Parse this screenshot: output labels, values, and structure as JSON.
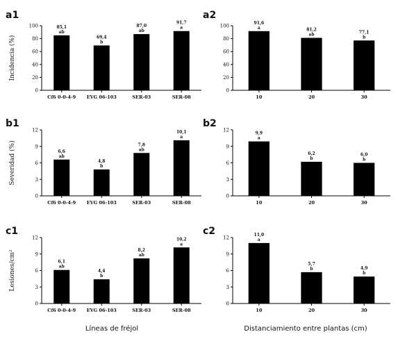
{
  "group_labels": {
    "left": "Líneas de fréjol",
    "right": "Distanciamiento entre plantas (cm)"
  },
  "bar_color": "#000000",
  "chart_data": [
    {
      "id": "a1",
      "panel_label": "a1",
      "type": "bar",
      "ylabel": "Incidencia (%)",
      "ylim": [
        0,
        100
      ],
      "yticks": [
        0,
        20,
        40,
        60,
        80,
        100
      ],
      "categories": [
        "Cf6 0-0-4-9",
        "EVG 06-103",
        "SER-03",
        "SER-08"
      ],
      "values": [
        85.1,
        69.4,
        87.0,
        91.7
      ],
      "value_labels": [
        "85,1",
        "69,4",
        "87,0",
        "91,7"
      ],
      "letters": [
        "ab",
        "b",
        "ab",
        "a"
      ]
    },
    {
      "id": "a2",
      "panel_label": "a2",
      "type": "bar",
      "ylabel": "",
      "ylim": [
        0,
        100
      ],
      "yticks": [
        0,
        20,
        40,
        60,
        80,
        100
      ],
      "categories": [
        "10",
        "20",
        "30"
      ],
      "values": [
        91.6,
        81.2,
        77.1
      ],
      "value_labels": [
        "91,6",
        "81,2",
        "77,1"
      ],
      "letters": [
        "a",
        "ab",
        "b"
      ]
    },
    {
      "id": "b1",
      "panel_label": "b1",
      "type": "bar",
      "ylabel": "Severidad (%)",
      "ylim": [
        0,
        12
      ],
      "yticks": [
        0,
        3,
        6,
        9,
        12
      ],
      "categories": [
        "Cf6 0-0-4-9",
        "EVG 06-103",
        "SER-03",
        "SER-08"
      ],
      "values": [
        6.6,
        4.8,
        7.8,
        10.1
      ],
      "value_labels": [
        "6,6",
        "4,8",
        "7,8",
        "10,1"
      ],
      "letters": [
        "ab",
        "b",
        "ab",
        "a"
      ]
    },
    {
      "id": "b2",
      "panel_label": "b2",
      "type": "bar",
      "ylabel": "",
      "ylim": [
        0,
        12
      ],
      "yticks": [
        0,
        3,
        6,
        9,
        12
      ],
      "categories": [
        "10",
        "20",
        "30"
      ],
      "values": [
        9.9,
        6.2,
        6.0
      ],
      "value_labels": [
        "9,9",
        "6,2",
        "6,0"
      ],
      "letters": [
        "a",
        "b",
        "b"
      ]
    },
    {
      "id": "c1",
      "panel_label": "c1",
      "type": "bar",
      "ylabel": "Lesiones/cm²",
      "ylim": [
        0,
        12
      ],
      "yticks": [
        0,
        3,
        6,
        9,
        12
      ],
      "categories": [
        "Cf6 0-0-4-9",
        "EVG 06-103",
        "SER-03",
        "SER-08"
      ],
      "values": [
        6.1,
        4.4,
        8.2,
        10.2
      ],
      "value_labels": [
        "6,1",
        "4,4",
        "8,2",
        "10,2"
      ],
      "letters": [
        "ab",
        "b",
        "ab",
        "a"
      ]
    },
    {
      "id": "c2",
      "panel_label": "c2",
      "type": "bar",
      "ylabel": "",
      "ylim": [
        0,
        12
      ],
      "yticks": [
        0,
        3,
        6,
        9,
        12
      ],
      "categories": [
        "10",
        "20",
        "30"
      ],
      "values": [
        11.0,
        5.7,
        4.9
      ],
      "value_labels": [
        "11,0",
        "5,7",
        "4,9"
      ],
      "letters": [
        "a",
        "b",
        "b"
      ]
    }
  ]
}
